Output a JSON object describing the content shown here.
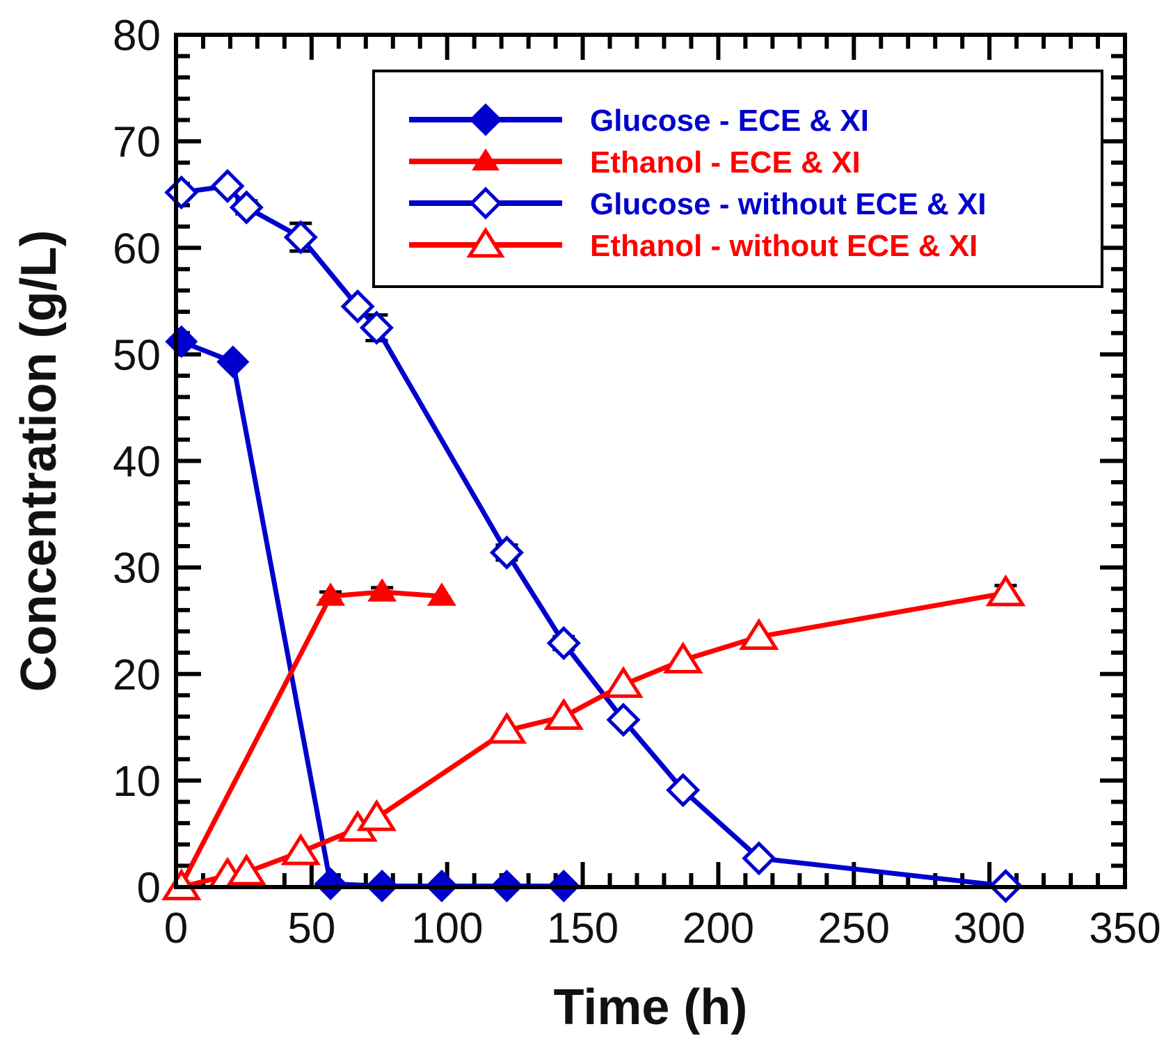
{
  "chart_data": {
    "type": "line",
    "title": "",
    "xlabel": "Time (h)",
    "ylabel": "Concentration (g/L)",
    "xlim": [
      0,
      350
    ],
    "ylim": [
      0,
      80
    ],
    "xticks": [
      0,
      50,
      100,
      150,
      200,
      250,
      300,
      350
    ],
    "yticks": [
      0,
      10,
      20,
      30,
      40,
      50,
      60,
      70,
      80
    ],
    "x_minor_step": 10,
    "y_minor_step": 2,
    "grid": false,
    "legend_position": "top-right",
    "series": [
      {
        "name": "Glucose - ECE & XI",
        "color": "#0000cc",
        "marker": "diamond",
        "filled": true,
        "x": [
          2,
          21,
          57,
          76,
          98,
          122,
          143
        ],
        "y": [
          51.2,
          49.3,
          0.3,
          0.1,
          0.1,
          0.1,
          0.1
        ],
        "error": [
          0,
          0,
          0,
          0,
          0,
          0,
          0
        ]
      },
      {
        "name": "Ethanol - ECE & XI",
        "color": "#ff0000",
        "marker": "triangle",
        "filled": true,
        "x": [
          2,
          57,
          76,
          98
        ],
        "y": [
          0.2,
          27.3,
          27.7,
          27.3
        ],
        "error": [
          0,
          0.4,
          0.4,
          0
        ]
      },
      {
        "name": "Glucose - without ECE & XI",
        "color": "#0000cc",
        "marker": "diamond",
        "filled": false,
        "x": [
          2,
          19,
          26,
          46,
          67,
          74,
          122,
          143,
          165,
          187,
          215,
          306
        ],
        "y": [
          65.2,
          65.8,
          63.8,
          61.0,
          54.5,
          52.5,
          31.4,
          22.9,
          15.7,
          9.1,
          2.7,
          0.1
        ],
        "error": [
          0,
          0,
          0.6,
          1.3,
          0,
          1.2,
          0.7,
          0.6,
          0,
          0,
          0,
          0
        ]
      },
      {
        "name": "Ethanol - without ECE & XI",
        "color": "#ff0000",
        "marker": "triangle",
        "filled": false,
        "x": [
          2,
          19,
          26,
          46,
          67,
          74,
          122,
          143,
          165,
          187,
          215,
          306
        ],
        "y": [
          0,
          1.1,
          1.4,
          3.3,
          5.5,
          6.5,
          14.7,
          16.0,
          19.0,
          21.3,
          23.5,
          27.6
        ],
        "error": [
          0,
          0,
          0,
          0,
          0,
          0,
          0,
          0,
          0,
          0,
          0,
          0.7
        ]
      }
    ]
  }
}
